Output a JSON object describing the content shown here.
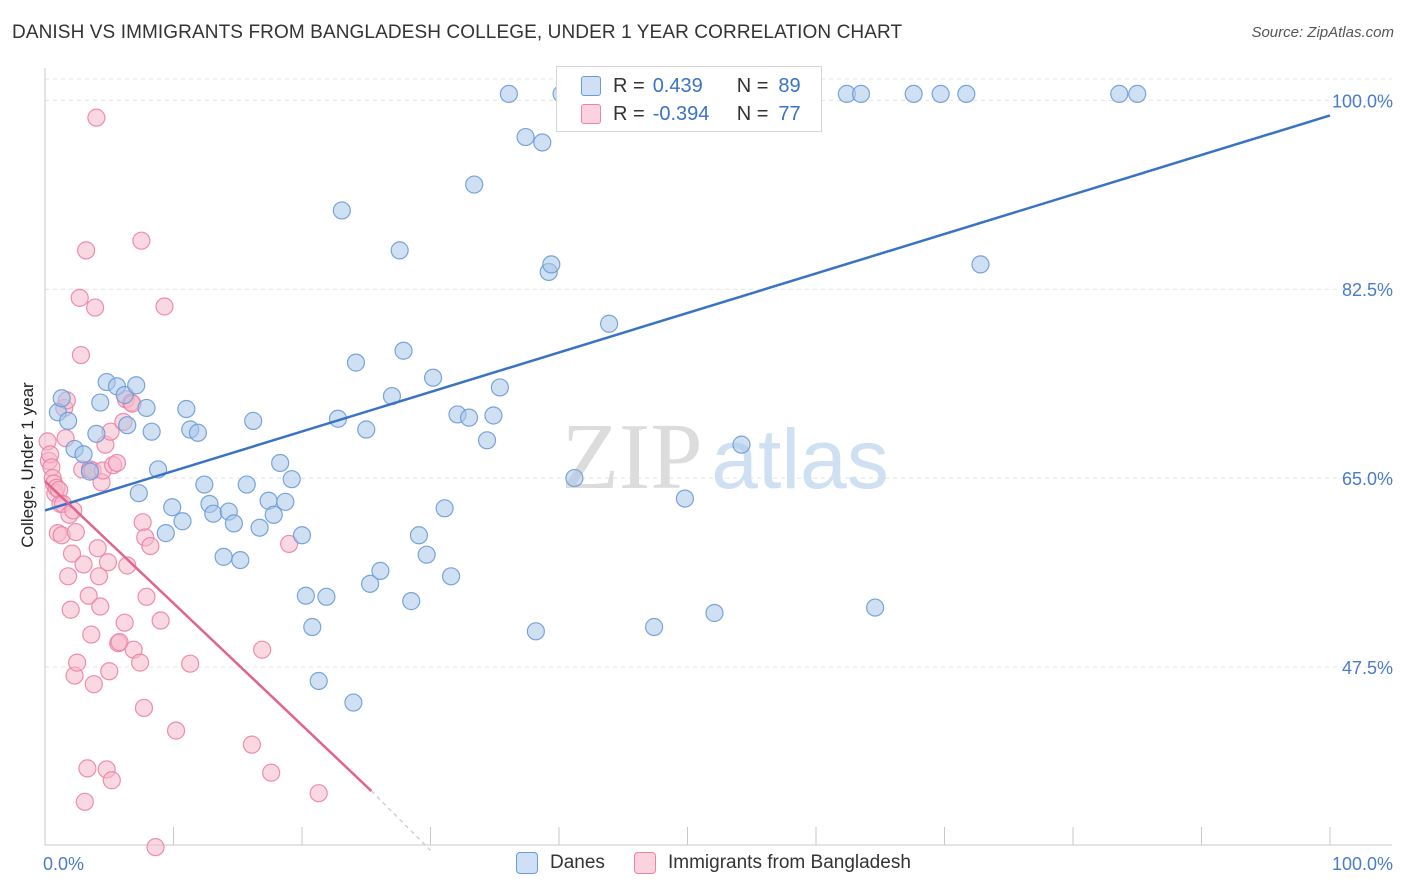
{
  "title": "DANISH VS IMMIGRANTS FROM BANGLADESH COLLEGE, UNDER 1 YEAR CORRELATION CHART",
  "source": "Source: ZipAtlas.com",
  "watermark": {
    "zip": "ZIP",
    "atlas": "atlas"
  },
  "legend": {
    "rows": [
      {
        "r_label": "R =",
        "r_value": "0.439",
        "n_label": "N =",
        "n_value": "89",
        "color": "#a9c6ea"
      },
      {
        "r_label": "R =",
        "r_value": "-0.394",
        "n_label": "N =",
        "n_value": "77",
        "color": "#f5b8cb"
      }
    ]
  },
  "bottom_legend": [
    {
      "label": "Danes",
      "color": "#a9c6ea"
    },
    {
      "label": "Immigrants from Bangladesh",
      "color": "#f5b8cb"
    }
  ],
  "chart_data": {
    "type": "scatter",
    "title": "DANISH VS IMMIGRANTS FROM BANGLADESH COLLEGE, UNDER 1 YEAR CORRELATION CHART",
    "xlabel": "",
    "ylabel": "College, Under 1 year",
    "xlim": [
      0,
      100
    ],
    "ylim": [
      31,
      103
    ],
    "x_tick_labels": [
      "0.0%",
      "100.0%"
    ],
    "y_ticks": [
      47.5,
      65.0,
      82.5,
      100.0
    ],
    "y_tick_labels": [
      "47.5%",
      "65.0%",
      "82.5%",
      "100.0%"
    ],
    "grid": "horizontal dashed",
    "legend_placement": "top-center",
    "series": [
      {
        "name": "Danes",
        "color": "#6b9bd6",
        "fill": "#a9c6ea",
        "trend": {
          "x": [
            0,
            100
          ],
          "y": [
            62.0,
            98.6
          ]
        },
        "points": [
          [
            1.0,
            71.1
          ],
          [
            1.3,
            72.4
          ],
          [
            1.8,
            70.3
          ],
          [
            2.3,
            67.7
          ],
          [
            3.0,
            67.2
          ],
          [
            3.5,
            65.6
          ],
          [
            4.0,
            69.1
          ],
          [
            4.3,
            72.0
          ],
          [
            4.8,
            73.9
          ],
          [
            5.6,
            73.5
          ],
          [
            6.2,
            72.7
          ],
          [
            6.4,
            69.9
          ],
          [
            7.1,
            73.6
          ],
          [
            7.3,
            63.6
          ],
          [
            7.9,
            71.5
          ],
          [
            8.3,
            69.3
          ],
          [
            8.8,
            65.8
          ],
          [
            9.4,
            59.9
          ],
          [
            9.9,
            62.3
          ],
          [
            10.7,
            61.0
          ],
          [
            11.0,
            71.4
          ],
          [
            11.3,
            69.5
          ],
          [
            11.9,
            69.2
          ],
          [
            12.4,
            64.4
          ],
          [
            12.8,
            62.6
          ],
          [
            13.1,
            61.7
          ],
          [
            13.9,
            57.7
          ],
          [
            14.3,
            61.9
          ],
          [
            14.7,
            60.8
          ],
          [
            15.2,
            57.4
          ],
          [
            15.7,
            64.4
          ],
          [
            16.2,
            70.3
          ],
          [
            16.7,
            60.4
          ],
          [
            17.4,
            62.9
          ],
          [
            17.8,
            61.6
          ],
          [
            18.3,
            66.4
          ],
          [
            18.7,
            62.8
          ],
          [
            19.2,
            64.9
          ],
          [
            20.0,
            59.7
          ],
          [
            20.3,
            54.1
          ],
          [
            20.8,
            51.2
          ],
          [
            21.3,
            46.2
          ],
          [
            21.9,
            54.0
          ],
          [
            22.8,
            70.5
          ],
          [
            23.1,
            89.8
          ],
          [
            24.0,
            44.2
          ],
          [
            24.2,
            75.7
          ],
          [
            25.0,
            69.5
          ],
          [
            25.3,
            55.2
          ],
          [
            26.1,
            56.4
          ],
          [
            27.0,
            72.6
          ],
          [
            27.6,
            86.1
          ],
          [
            27.9,
            76.8
          ],
          [
            28.5,
            53.6
          ],
          [
            29.1,
            59.7
          ],
          [
            29.7,
            57.9
          ],
          [
            30.2,
            74.3
          ],
          [
            31.1,
            62.2
          ],
          [
            31.6,
            55.9
          ],
          [
            32.1,
            70.9
          ],
          [
            33.0,
            70.6
          ],
          [
            33.4,
            92.2
          ],
          [
            34.4,
            68.5
          ],
          [
            34.9,
            70.8
          ],
          [
            35.4,
            73.4
          ],
          [
            36.1,
            100.6
          ],
          [
            37.4,
            96.6
          ],
          [
            38.2,
            50.8
          ],
          [
            38.7,
            96.1
          ],
          [
            39.2,
            84.1
          ],
          [
            39.4,
            84.8
          ],
          [
            40.2,
            100.6
          ],
          [
            41.2,
            65.0
          ],
          [
            42.1,
            100.6
          ],
          [
            43.9,
            79.3
          ],
          [
            47.4,
            51.2
          ],
          [
            49.8,
            63.1
          ],
          [
            52.1,
            52.5
          ],
          [
            54.2,
            68.1
          ],
          [
            56.4,
            100.6
          ],
          [
            62.4,
            100.6
          ],
          [
            63.5,
            100.6
          ],
          [
            64.6,
            53.0
          ],
          [
            67.6,
            100.6
          ],
          [
            69.7,
            100.6
          ],
          [
            71.7,
            100.6
          ],
          [
            72.8,
            84.8
          ],
          [
            83.6,
            100.6
          ],
          [
            85.0,
            100.6
          ]
        ]
      },
      {
        "name": "Immigrants from Bangladesh",
        "color": "#ec82a6",
        "fill": "#f5b8cb",
        "trend": {
          "x": [
            0,
            25.4
          ],
          "y": [
            64.7,
            36.0
          ]
        },
        "trend_ext": {
          "x": [
            25.4,
            30.0
          ],
          "y": [
            36.0,
            30.5
          ]
        },
        "points": [
          [
            0.2,
            68.4
          ],
          [
            0.3,
            66.6
          ],
          [
            0.4,
            67.2
          ],
          [
            0.5,
            66.0
          ],
          [
            0.6,
            65.0
          ],
          [
            0.7,
            64.5
          ],
          [
            0.8,
            63.6
          ],
          [
            0.9,
            64.1
          ],
          [
            1.0,
            59.9
          ],
          [
            1.1,
            63.9
          ],
          [
            1.2,
            62.6
          ],
          [
            1.3,
            59.7
          ],
          [
            1.4,
            62.6
          ],
          [
            1.5,
            71.5
          ],
          [
            1.6,
            68.7
          ],
          [
            1.7,
            72.2
          ],
          [
            1.8,
            55.9
          ],
          [
            1.9,
            61.6
          ],
          [
            2.0,
            52.8
          ],
          [
            2.1,
            58.0
          ],
          [
            2.2,
            62.0
          ],
          [
            2.3,
            46.7
          ],
          [
            2.4,
            60.0
          ],
          [
            2.5,
            47.9
          ],
          [
            2.7,
            81.7
          ],
          [
            2.8,
            76.4
          ],
          [
            2.9,
            65.8
          ],
          [
            3.0,
            57.0
          ],
          [
            3.1,
            35.0
          ],
          [
            3.2,
            86.1
          ],
          [
            3.3,
            38.1
          ],
          [
            3.4,
            54.1
          ],
          [
            3.5,
            65.8
          ],
          [
            3.6,
            50.5
          ],
          [
            3.7,
            65.7
          ],
          [
            3.8,
            45.9
          ],
          [
            3.9,
            80.8
          ],
          [
            4.0,
            98.4
          ],
          [
            4.1,
            58.5
          ],
          [
            4.2,
            55.9
          ],
          [
            4.3,
            53.1
          ],
          [
            4.4,
            64.6
          ],
          [
            4.5,
            65.7
          ],
          [
            4.7,
            68.1
          ],
          [
            4.8,
            38.0
          ],
          [
            4.9,
            57.2
          ],
          [
            5.0,
            47.1
          ],
          [
            5.1,
            69.3
          ],
          [
            5.2,
            37.0
          ],
          [
            5.3,
            66.2
          ],
          [
            5.6,
            66.4
          ],
          [
            5.7,
            49.7
          ],
          [
            5.8,
            49.8
          ],
          [
            6.1,
            70.2
          ],
          [
            6.2,
            51.6
          ],
          [
            6.3,
            72.3
          ],
          [
            6.4,
            56.9
          ],
          [
            6.7,
            72.0
          ],
          [
            6.8,
            71.9
          ],
          [
            6.9,
            49.1
          ],
          [
            7.4,
            47.9
          ],
          [
            7.5,
            87.0
          ],
          [
            7.6,
            60.9
          ],
          [
            7.7,
            43.7
          ],
          [
            7.8,
            59.5
          ],
          [
            7.9,
            54.0
          ],
          [
            8.2,
            58.7
          ],
          [
            8.6,
            30.8
          ],
          [
            9.0,
            51.8
          ],
          [
            9.3,
            80.9
          ],
          [
            10.2,
            41.6
          ],
          [
            11.3,
            47.8
          ],
          [
            16.1,
            40.3
          ],
          [
            16.9,
            49.1
          ],
          [
            17.6,
            37.7
          ],
          [
            19.0,
            58.9
          ],
          [
            21.3,
            35.8
          ]
        ]
      }
    ]
  }
}
